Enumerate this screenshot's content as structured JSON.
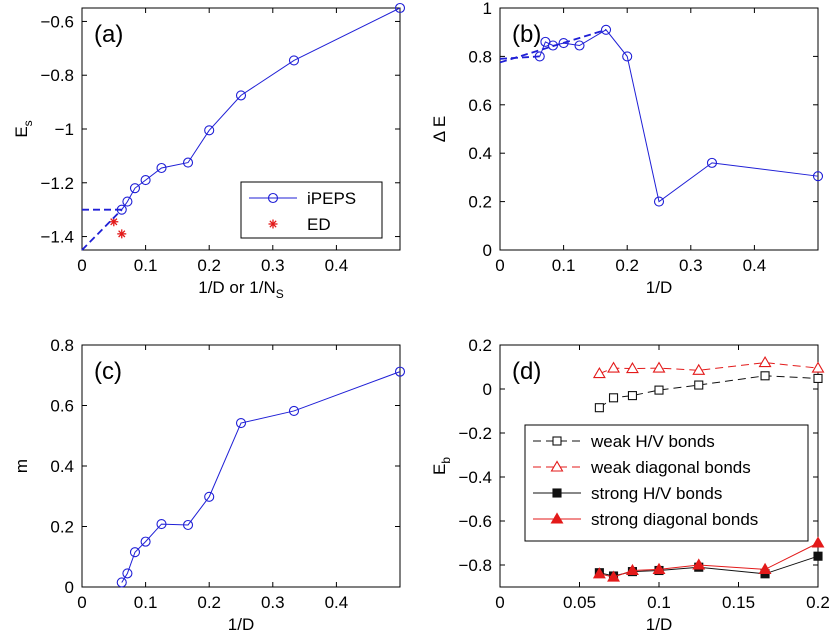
{
  "colors": {
    "blue": "#1f1fd6",
    "red": "#e31a1a",
    "black": "#111111",
    "gray": "#333333",
    "axis": "#000000"
  },
  "chart_data": [
    {
      "id": "a",
      "type": "line",
      "panel_label": "(a)",
      "xlabel_main": "1/D or 1/N",
      "xlabel_sub": "S",
      "ylabel_main": "E",
      "ylabel_sub": "s",
      "xlim": [
        0,
        0.5
      ],
      "ylim": [
        -1.45,
        -0.55
      ],
      "xticks": [
        0,
        0.1,
        0.2,
        0.3,
        0.4
      ],
      "xtick_labels": [
        "0",
        "0.1",
        "0.2",
        "0.3",
        "0.4"
      ],
      "yticks": [
        -1.4,
        -1.2,
        -1,
        -0.8,
        -0.6
      ],
      "ytick_labels": [
        "−1.4",
        "−1.2",
        "−1",
        "−0.8",
        "−0.6"
      ],
      "legend": [
        {
          "label": "iPEPS",
          "color": "blue",
          "marker": "circle",
          "line": "solid"
        },
        {
          "label": "ED",
          "color": "red",
          "marker": "star",
          "line": "none"
        }
      ],
      "legend_position": "lower-right",
      "series": [
        {
          "name": "iPEPS",
          "color": "blue",
          "marker": "circle",
          "line": "solid",
          "x": [
            0.0625,
            0.0714,
            0.0833,
            0.1,
            0.125,
            0.1667,
            0.2,
            0.25,
            0.3333,
            0.5
          ],
          "y": [
            -1.3,
            -1.27,
            -1.22,
            -1.19,
            -1.145,
            -1.125,
            -1.005,
            -0.875,
            -0.745,
            -0.55
          ]
        },
        {
          "name": "ED",
          "color": "red",
          "marker": "star",
          "line": "none",
          "x": [
            0.05,
            0.0625
          ],
          "y": [
            -1.345,
            -1.39
          ]
        },
        {
          "name": "extrapolation-1",
          "color": "blue",
          "marker": "none",
          "line": "dashed",
          "x": [
            0,
            0.0625
          ],
          "y": [
            -1.3,
            -1.3
          ]
        },
        {
          "name": "extrapolation-2",
          "color": "blue",
          "marker": "none",
          "line": "dashed",
          "x": [
            0,
            0.0625
          ],
          "y": [
            -1.45,
            -1.3
          ]
        }
      ]
    },
    {
      "id": "b",
      "type": "line",
      "panel_label": "(b)",
      "xlabel_main": "1/D",
      "xlabel_sub": "",
      "ylabel_main": "Δ E",
      "ylabel_sub": "",
      "xlim": [
        0,
        0.5
      ],
      "ylim": [
        0,
        1
      ],
      "xticks": [
        0,
        0.1,
        0.2,
        0.3,
        0.4
      ],
      "xtick_labels": [
        "0",
        "0.1",
        "0.2",
        "0.3",
        "0.4"
      ],
      "yticks": [
        0,
        0.2,
        0.4,
        0.6,
        0.8,
        1
      ],
      "ytick_labels": [
        "0",
        "0.2",
        "0.4",
        "0.6",
        "0.8",
        "1"
      ],
      "legend": [],
      "series": [
        {
          "name": "gap",
          "color": "blue",
          "marker": "circle",
          "line": "solid",
          "x": [
            0.0625,
            0.0714,
            0.0833,
            0.1,
            0.125,
            0.1667,
            0.2,
            0.25,
            0.3333,
            0.5
          ],
          "y": [
            0.8,
            0.86,
            0.845,
            0.855,
            0.845,
            0.91,
            0.8,
            0.2,
            0.36,
            0.305
          ]
        },
        {
          "name": "extrapolation-1",
          "color": "blue",
          "marker": "none",
          "line": "dashed",
          "x": [
            0,
            0.0625
          ],
          "y": [
            0.79,
            0.8
          ]
        },
        {
          "name": "extrapolation-2",
          "color": "blue",
          "marker": "none",
          "line": "dashed",
          "x": [
            0,
            0.1667
          ],
          "y": [
            0.775,
            0.91
          ]
        }
      ]
    },
    {
      "id": "c",
      "type": "line",
      "panel_label": "(c)",
      "xlabel_main": "1/D",
      "xlabel_sub": "",
      "ylabel_main": "m",
      "ylabel_sub": "",
      "xlim": [
        0,
        0.5
      ],
      "ylim": [
        0,
        0.8
      ],
      "xticks": [
        0,
        0.1,
        0.2,
        0.3,
        0.4
      ],
      "xtick_labels": [
        "0",
        "0.1",
        "0.2",
        "0.3",
        "0.4"
      ],
      "yticks": [
        0,
        0.2,
        0.4,
        0.6,
        0.8
      ],
      "ytick_labels": [
        "0",
        "0.2",
        "0.4",
        "0.6",
        "0.8"
      ],
      "legend": [],
      "series": [
        {
          "name": "m",
          "color": "blue",
          "marker": "circle",
          "line": "solid",
          "x": [
            0.0625,
            0.0714,
            0.0833,
            0.1,
            0.125,
            0.1667,
            0.2,
            0.25,
            0.3333,
            0.5
          ],
          "y": [
            0.015,
            0.045,
            0.115,
            0.15,
            0.208,
            0.205,
            0.298,
            0.542,
            0.582,
            0.712
          ]
        }
      ]
    },
    {
      "id": "d",
      "type": "line",
      "panel_label": "(d)",
      "xlabel_main": "1/D",
      "xlabel_sub": "",
      "ylabel_main": "E",
      "ylabel_sub": "b",
      "xlim": [
        0,
        0.2
      ],
      "ylim": [
        -0.9,
        0.2
      ],
      "xticks": [
        0,
        0.05,
        0.1,
        0.15,
        0.2
      ],
      "xtick_labels": [
        "0",
        "0.05",
        "0.1",
        "0.15",
        "0.2"
      ],
      "yticks": [
        -0.8,
        -0.6,
        -0.4,
        -0.2,
        0,
        0.2
      ],
      "ytick_labels": [
        "−0.8",
        "−0.6",
        "−0.4",
        "−0.2",
        "0",
        "0.2"
      ],
      "legend": [
        {
          "label": "weak H/V bonds",
          "color": "black",
          "marker": "square-open",
          "line": "dashed"
        },
        {
          "label": "weak diagonal bonds",
          "color": "red",
          "marker": "triangle-open",
          "line": "dashed"
        },
        {
          "label": "strong H/V bonds",
          "color": "black",
          "marker": "square-filled",
          "line": "solid"
        },
        {
          "label": "strong diagonal bonds",
          "color": "red",
          "marker": "triangle-filled",
          "line": "solid"
        }
      ],
      "legend_position": "middle",
      "series": [
        {
          "name": "weak H/V bonds",
          "color": "black",
          "marker": "square-open",
          "line": "dashed",
          "x": [
            0.0625,
            0.0714,
            0.0833,
            0.1,
            0.125,
            0.1667,
            0.2
          ],
          "y": [
            -0.085,
            -0.04,
            -0.03,
            -0.005,
            0.018,
            0.06,
            0.048
          ]
        },
        {
          "name": "weak diagonal bonds",
          "color": "red",
          "marker": "triangle-open",
          "line": "dashed",
          "x": [
            0.0625,
            0.0714,
            0.0833,
            0.1,
            0.125,
            0.1667,
            0.2
          ],
          "y": [
            0.07,
            0.095,
            0.093,
            0.095,
            0.085,
            0.12,
            0.095
          ]
        },
        {
          "name": "strong H/V bonds",
          "color": "black",
          "marker": "square-filled",
          "line": "solid",
          "x": [
            0.0625,
            0.0714,
            0.0833,
            0.1,
            0.125,
            0.1667,
            0.2
          ],
          "y": [
            -0.835,
            -0.85,
            -0.83,
            -0.825,
            -0.81,
            -0.84,
            -0.76
          ]
        },
        {
          "name": "strong diagonal bonds",
          "color": "red",
          "marker": "triangle-filled",
          "line": "solid",
          "x": [
            0.0625,
            0.0714,
            0.0833,
            0.1,
            0.125,
            0.1667,
            0.2
          ],
          "y": [
            -0.84,
            -0.855,
            -0.825,
            -0.82,
            -0.8,
            -0.82,
            -0.7
          ]
        }
      ]
    }
  ]
}
